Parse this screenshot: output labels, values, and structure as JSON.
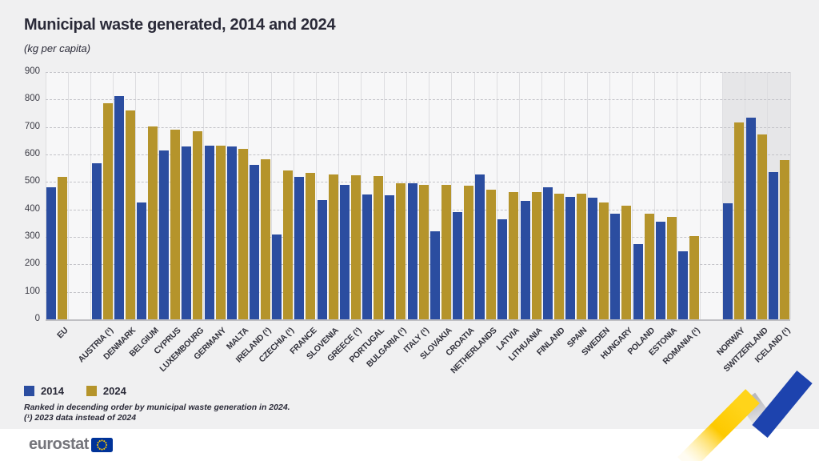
{
  "page": {
    "title": "Municipal waste generated, 2014 and 2024",
    "subtitle": "(kg per capita)"
  },
  "legend": {
    "items": [
      {
        "label": "2014",
        "color": "#2b4da0"
      },
      {
        "label": "2024",
        "color": "#b5942b"
      }
    ]
  },
  "footnotes": {
    "line1": "Ranked in decending order by municipal waste generation in 2024.",
    "line2": "(¹) 2023 data instead of 2024"
  },
  "logo": {
    "text": "eurostat",
    "flag_color": "#003399",
    "star_color": "#ffcc00"
  },
  "chart_data": {
    "type": "bar",
    "title": "Municipal waste generated, 2014 and 2024",
    "ylabel": "kg per capita",
    "ylim": [
      0,
      900
    ],
    "ytick_step": 100,
    "grid": "horizontal-dashed",
    "legend_position": "bottom-left",
    "categories": [
      "EU",
      "AUSTRIA (¹)",
      "DENMARK",
      "BELGIUM",
      "CYPRUS",
      "LUXEMBOURG",
      "GERMANY",
      "MALTA",
      "IRELAND (¹)",
      "CZECHIA (¹)",
      "FRANCE",
      "SLOVENIA",
      "GREECE (¹)",
      "PORTUGAL",
      "BULGARIA (¹)",
      "ITALY (¹)",
      "SLOVAKIA",
      "CROATIA",
      "NETHERLANDS",
      "LATVIA",
      "LITHUANIA",
      "FINLAND",
      "SPAIN",
      "SWEDEN",
      "HUNGARY",
      "POLAND",
      "ESTONIA",
      "ROMANIA (¹)",
      "NORWAY",
      "SWITZERLAND",
      "ICELAND (¹)"
    ],
    "series": [
      {
        "name": "2014",
        "color": "#2b4da0",
        "values": [
          480,
          567,
          812,
          424,
          614,
          628,
          633,
          629,
          562,
          310,
          518,
          433,
          490,
          454,
          452,
          494,
          320,
          390,
          527,
          364,
          431,
          482,
          447,
          443,
          385,
          274,
          356,
          248,
          422,
          734,
          536
        ]
      },
      {
        "name": "2024",
        "color": "#b5942b",
        "values": [
          519,
          786,
          759,
          703,
          690,
          684,
          631,
          620,
          582,
          541,
          533,
          527,
          524,
          520,
          494,
          489,
          489,
          486,
          472,
          464,
          463,
          458,
          456,
          425,
          414,
          385,
          373,
          303,
          717,
          672,
          580
        ]
      }
    ],
    "gaps_after": [
      "EU",
      "ROMANIA (¹)"
    ],
    "shaded_categories": [
      "NORWAY",
      "SWITZERLAND",
      "ICELAND (¹)"
    ]
  }
}
